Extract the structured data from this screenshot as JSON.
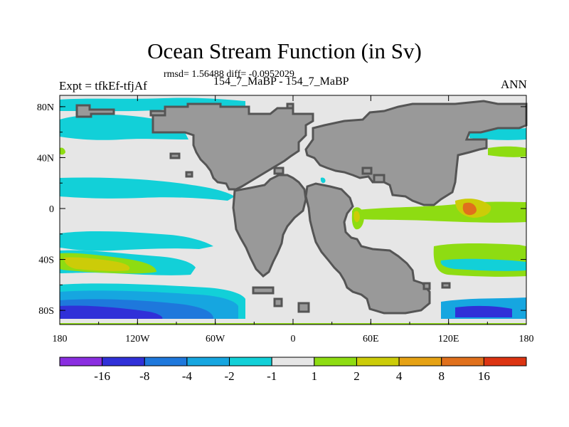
{
  "header": {
    "title": "Ocean Stream Function (in Sv)",
    "stats": "rmsd= 1.56488 diff= -0.0952029",
    "expt": "Expt = tfkEf-tfjAf",
    "cases": "154_7_MaBP - 154_7_MaBP",
    "season": "ANN"
  },
  "chart_data": {
    "type": "heatmap",
    "title": "Ocean Stream Function (in Sv)",
    "xlabel": "",
    "ylabel": "",
    "x_ticks": [
      "180",
      "120W",
      "60W",
      "0",
      "60E",
      "120E",
      "180"
    ],
    "y_ticks": [
      "80N",
      "40N",
      "0",
      "40S",
      "80S"
    ],
    "xlim": [
      -180,
      180
    ],
    "ylim": [
      -90,
      90
    ],
    "levels": [
      -16,
      -8,
      -4,
      -2,
      -1,
      1,
      2,
      4,
      8,
      16
    ],
    "colorbar_labels": [
      "-16",
      "-8",
      "-4",
      "-2",
      "-1",
      "1",
      "2",
      "4",
      "8",
      "16"
    ],
    "colors": [
      "#8a2ee0",
      "#3030d8",
      "#1e78dc",
      "#16a6e0",
      "#12d0d8",
      "#e6e6e6",
      "#8edc12",
      "#cccc08",
      "#e6a214",
      "#e0701c",
      "#dc3412"
    ],
    "land_color": "#999999",
    "ocean_zero_color": "#e6e6e6"
  }
}
